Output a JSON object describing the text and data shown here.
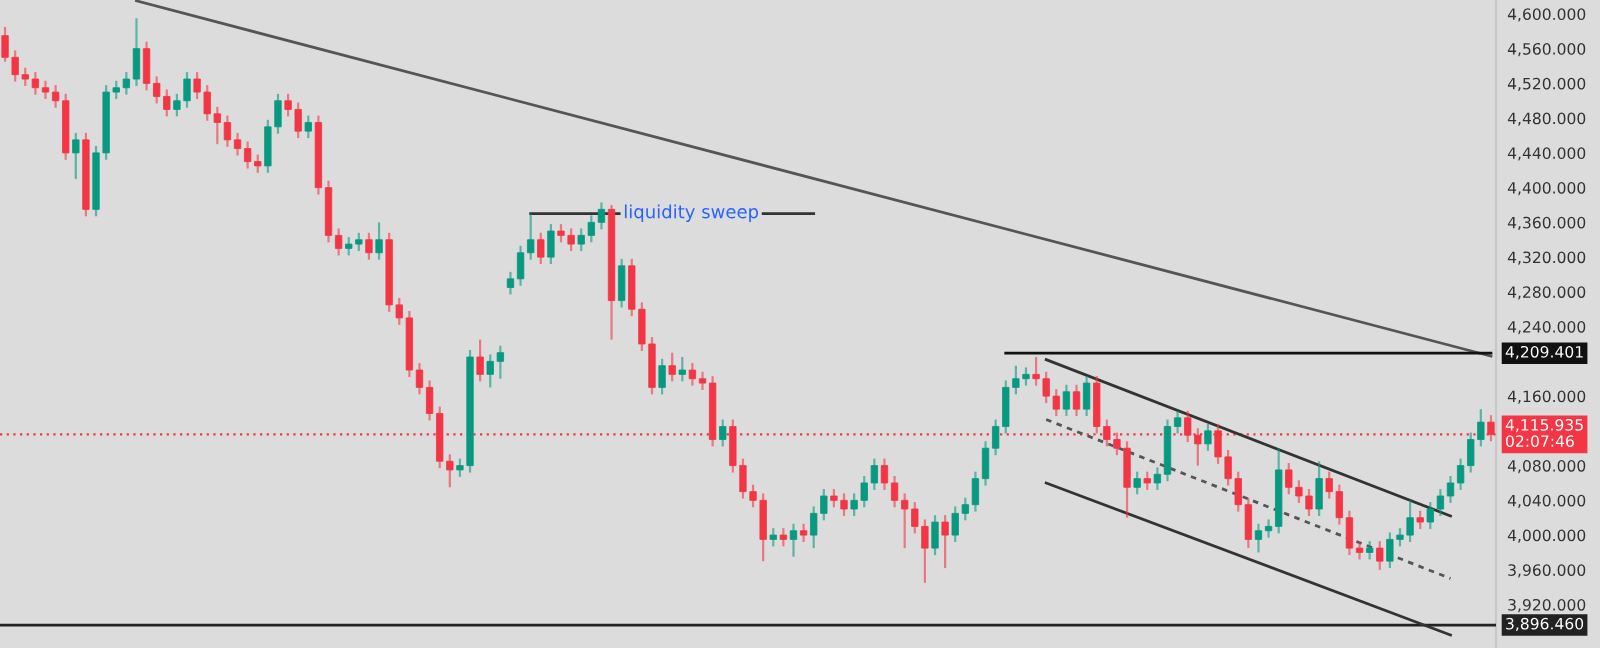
{
  "chart_data": {
    "type": "candlestick",
    "categories": [
      null,
      null,
      null,
      null,
      null,
      null,
      null,
      null,
      null,
      null,
      null,
      null,
      null,
      null,
      null,
      null,
      null,
      null,
      null,
      null,
      null,
      null,
      null,
      null,
      null,
      null,
      null,
      null,
      null,
      null,
      null,
      null,
      null,
      null,
      null,
      null,
      null,
      null,
      null,
      null,
      null,
      null,
      null,
      null,
      null,
      null,
      null,
      null,
      null,
      null,
      null,
      null,
      null,
      null,
      null,
      null,
      null,
      null,
      null,
      null,
      null,
      null,
      null,
      null,
      null,
      null,
      null,
      null,
      null,
      null,
      null,
      null,
      null,
      null,
      null,
      null,
      null,
      null,
      null,
      null,
      null,
      null,
      null,
      null,
      null,
      null,
      null,
      null,
      null,
      null,
      null,
      null,
      null,
      null,
      null,
      null,
      null,
      null,
      null,
      null,
      null,
      null,
      null,
      null,
      null,
      null,
      null,
      null,
      null,
      null,
      null,
      null,
      null,
      null,
      null,
      null,
      null,
      null,
      null,
      null,
      null,
      null,
      null,
      null,
      null,
      null,
      null,
      null,
      null,
      null,
      null,
      null,
      null,
      null,
      null,
      null,
      null,
      null,
      null,
      null,
      null,
      null,
      null,
      null,
      null,
      null,
      null,
      null
    ],
    "ohlc": [
      [
        4575,
        4585,
        4545,
        4550
      ],
      [
        4550,
        4558,
        4522,
        4530
      ],
      [
        4530,
        4538,
        4517,
        4525
      ],
      [
        4525,
        4533,
        4507,
        4515
      ],
      [
        4515,
        4523,
        4502,
        4510
      ],
      [
        4510,
        4518,
        4492,
        4500
      ],
      [
        4500,
        4508,
        4432,
        4440
      ],
      [
        4440,
        4463,
        4410,
        4455
      ],
      [
        4455,
        4463,
        4367,
        4375
      ],
      [
        4375,
        4448,
        4367,
        4440
      ],
      [
        4440,
        4518,
        4432,
        4510
      ],
      [
        4510,
        4523,
        4502,
        4515
      ],
      [
        4515,
        4533,
        4507,
        4525
      ],
      [
        4525,
        4595,
        4517,
        4560
      ],
      [
        4560,
        4568,
        4512,
        4520
      ],
      [
        4520,
        4528,
        4497,
        4505
      ],
      [
        4505,
        4513,
        4482,
        4490
      ],
      [
        4490,
        4508,
        4482,
        4500
      ],
      [
        4500,
        4533,
        4492,
        4525
      ],
      [
        4525,
        4533,
        4502,
        4510
      ],
      [
        4510,
        4518,
        4477,
        4485
      ],
      [
        4485,
        4493,
        4450,
        4475
      ],
      [
        4475,
        4483,
        4447,
        4455
      ],
      [
        4455,
        4463,
        4437,
        4445
      ],
      [
        4445,
        4453,
        4422,
        4430
      ],
      [
        4430,
        4438,
        4417,
        4425
      ],
      [
        4425,
        4478,
        4417,
        4470
      ],
      [
        4470,
        4508,
        4462,
        4500
      ],
      [
        4500,
        4508,
        4482,
        4490
      ],
      [
        4490,
        4498,
        4457,
        4465
      ],
      [
        4465,
        4483,
        4457,
        4475
      ],
      [
        4475,
        4483,
        4392,
        4400
      ],
      [
        4400,
        4408,
        4337,
        4345
      ],
      [
        4345,
        4353,
        4322,
        4330
      ],
      [
        4330,
        4343,
        4322,
        4335
      ],
      [
        4335,
        4348,
        4327,
        4340
      ],
      [
        4340,
        4348,
        4317,
        4325
      ],
      [
        4325,
        4360,
        4317,
        4340
      ],
      [
        4340,
        4348,
        4257,
        4265
      ],
      [
        4265,
        4273,
        4242,
        4250
      ],
      [
        4250,
        4258,
        4182,
        4190
      ],
      [
        4190,
        4198,
        4162,
        4170
      ],
      [
        4170,
        4178,
        4132,
        4140
      ],
      [
        4140,
        4148,
        4077,
        4085
      ],
      [
        4085,
        4093,
        4055,
        4075
      ],
      [
        4075,
        4088,
        4067,
        4080
      ],
      [
        4080,
        4213,
        4072,
        4205
      ],
      [
        4205,
        4225,
        4177,
        4185
      ],
      [
        4185,
        4208,
        4170,
        4200
      ],
      [
        4200,
        4218,
        4180,
        4210
      ],
      [
        4285,
        4303,
        4277,
        4295
      ],
      [
        4295,
        4333,
        4287,
        4325
      ],
      [
        4325,
        4370,
        4317,
        4340
      ],
      [
        4340,
        4348,
        4312,
        4320
      ],
      [
        4320,
        4358,
        4312,
        4350
      ],
      [
        4350,
        4358,
        4337,
        4345
      ],
      [
        4345,
        4353,
        4327,
        4335
      ],
      [
        4335,
        4353,
        4327,
        4345
      ],
      [
        4345,
        4368,
        4337,
        4360
      ],
      [
        4360,
        4383,
        4352,
        4375
      ],
      [
        4375,
        4380,
        4225,
        4270
      ],
      [
        4270,
        4318,
        4262,
        4310
      ],
      [
        4310,
        4318,
        4252,
        4260
      ],
      [
        4260,
        4268,
        4212,
        4220
      ],
      [
        4220,
        4228,
        4162,
        4170
      ],
      [
        4170,
        4203,
        4162,
        4195
      ],
      [
        4195,
        4210,
        4177,
        4185
      ],
      [
        4185,
        4205,
        4177,
        4190
      ],
      [
        4190,
        4198,
        4172,
        4180
      ],
      [
        4180,
        4188,
        4167,
        4175
      ],
      [
        4175,
        4183,
        4102,
        4110
      ],
      [
        4110,
        4133,
        4102,
        4125
      ],
      [
        4125,
        4133,
        4072,
        4080
      ],
      [
        4080,
        4088,
        4042,
        4050
      ],
      [
        4050,
        4058,
        4032,
        4040
      ],
      [
        4040,
        4048,
        3970,
        3995
      ],
      [
        3995,
        4008,
        3987,
        4000
      ],
      [
        4000,
        4008,
        3987,
        3995
      ],
      [
        3995,
        4013,
        3975,
        4005
      ],
      [
        4005,
        4013,
        3992,
        4000
      ],
      [
        4000,
        4033,
        3985,
        4025
      ],
      [
        4025,
        4053,
        4017,
        4045
      ],
      [
        4045,
        4053,
        4032,
        4040
      ],
      [
        4040,
        4048,
        4022,
        4030
      ],
      [
        4030,
        4048,
        4022,
        4040
      ],
      [
        4040,
        4068,
        4032,
        4060
      ],
      [
        4060,
        4088,
        4052,
        4080
      ],
      [
        4080,
        4088,
        4052,
        4060
      ],
      [
        4060,
        4068,
        4032,
        4040
      ],
      [
        4040,
        4048,
        3985,
        4030
      ],
      [
        4030,
        4038,
        4002,
        4010
      ],
      [
        4010,
        4018,
        3945,
        3985
      ],
      [
        3985,
        4023,
        3977,
        4015
      ],
      [
        4015,
        4023,
        3962,
        4000
      ],
      [
        4000,
        4033,
        3992,
        4025
      ],
      [
        4025,
        4043,
        4017,
        4035
      ],
      [
        4035,
        4073,
        4027,
        4065
      ],
      [
        4065,
        4108,
        4057,
        4100
      ],
      [
        4100,
        4133,
        4092,
        4125
      ],
      [
        4125,
        4178,
        4117,
        4170
      ],
      [
        4170,
        4195,
        4162,
        4180
      ],
      [
        4180,
        4193,
        4172,
        4185
      ],
      [
        4185,
        4205,
        4172,
        4180
      ],
      [
        4180,
        4188,
        4152,
        4160
      ],
      [
        4160,
        4168,
        4137,
        4145
      ],
      [
        4145,
        4173,
        4137,
        4165
      ],
      [
        4165,
        4173,
        4137,
        4145
      ],
      [
        4145,
        4183,
        4137,
        4175
      ],
      [
        4175,
        4183,
        4117,
        4125
      ],
      [
        4125,
        4133,
        4102,
        4110
      ],
      [
        4110,
        4118,
        4092,
        4100
      ],
      [
        4100,
        4108,
        4020,
        4055
      ],
      [
        4055,
        4073,
        4047,
        4065
      ],
      [
        4065,
        4073,
        4052,
        4060
      ],
      [
        4060,
        4078,
        4052,
        4070
      ],
      [
        4070,
        4133,
        4062,
        4125
      ],
      [
        4125,
        4143,
        4117,
        4135
      ],
      [
        4135,
        4143,
        4107,
        4115
      ],
      [
        4115,
        4123,
        4080,
        4105
      ],
      [
        4105,
        4128,
        4097,
        4120
      ],
      [
        4120,
        4128,
        4082,
        4090
      ],
      [
        4090,
        4098,
        4057,
        4065
      ],
      [
        4065,
        4073,
        4027,
        4035
      ],
      [
        4035,
        4043,
        3985,
        3995
      ],
      [
        3995,
        4013,
        3980,
        4005
      ],
      [
        4005,
        4018,
        3997,
        4010
      ],
      [
        4010,
        4100,
        4002,
        4075
      ],
      [
        4075,
        4083,
        4047,
        4055
      ],
      [
        4055,
        4063,
        4037,
        4045
      ],
      [
        4045,
        4053,
        4022,
        4030
      ],
      [
        4030,
        4085,
        4022,
        4065
      ],
      [
        4065,
        4073,
        4042,
        4050
      ],
      [
        4050,
        4058,
        4012,
        4020
      ],
      [
        4020,
        4028,
        3977,
        3985
      ],
      [
        3985,
        3993,
        3972,
        3980
      ],
      [
        3980,
        3993,
        3972,
        3985
      ],
      [
        3985,
        3993,
        3960,
        3970
      ],
      [
        3970,
        4003,
        3962,
        3995
      ],
      [
        3995,
        4008,
        3987,
        4000
      ],
      [
        4000,
        4040,
        3992,
        4020
      ],
      [
        4020,
        4028,
        4007,
        4015
      ],
      [
        4015,
        4038,
        4007,
        4030
      ],
      [
        4030,
        4053,
        4022,
        4045
      ],
      [
        4045,
        4068,
        4037,
        4060
      ],
      [
        4060,
        4088,
        4052,
        4080
      ],
      [
        4080,
        4118,
        4072,
        4110
      ],
      [
        4110,
        4145,
        4102,
        4130
      ],
      [
        4130,
        4138,
        4108,
        4115.935
      ]
    ],
    "colors": [
      "#f23645",
      "#f23645",
      "#f23645",
      "#f23645",
      "#f23645",
      "#f23645",
      "#f23645",
      "#089981",
      "#f23645",
      "#089981",
      "#089981",
      "#089981",
      "#089981",
      "#089981",
      "#f23645",
      "#f23645",
      "#f23645",
      "#089981",
      "#089981",
      "#f23645",
      "#f23645",
      "#f23645",
      "#f23645",
      "#f23645",
      "#f23645",
      "#f23645",
      "#089981",
      "#089981",
      "#f23645",
      "#f23645",
      "#089981",
      "#f23645",
      "#f23645",
      "#f23645",
      "#089981",
      "#089981",
      "#f23645",
      "#089981",
      "#f23645",
      "#f23645",
      "#f23645",
      "#f23645",
      "#f23645",
      "#f23645",
      "#f23645",
      "#089981",
      "#089981",
      "#f23645",
      "#089981",
      "#089981",
      "#089981",
      "#089981",
      "#089981",
      "#f23645",
      "#089981",
      "#f23645",
      "#f23645",
      "#089981",
      "#089981",
      "#089981",
      "#f23645",
      "#089981",
      "#f23645",
      "#f23645",
      "#f23645",
      "#089981",
      "#f23645",
      "#089981",
      "#f23645",
      "#f23645",
      "#f23645",
      "#089981",
      "#f23645",
      "#f23645",
      "#f23645",
      "#f23645",
      "#089981",
      "#f23645",
      "#089981",
      "#f23645",
      "#089981",
      "#089981",
      "#f23645",
      "#f23645",
      "#089981",
      "#089981",
      "#089981",
      "#f23645",
      "#f23645",
      "#f23645",
      "#f23645",
      "#f23645",
      "#089981",
      "#f23645",
      "#089981",
      "#089981",
      "#089981",
      "#089981",
      "#089981",
      "#089981",
      "#089981",
      "#089981",
      "#f23645",
      "#f23645",
      "#f23645",
      "#089981",
      "#f23645",
      "#089981",
      "#f23645",
      "#f23645",
      "#f23645",
      "#f23645",
      "#089981",
      "#f23645",
      "#089981",
      "#089981",
      "#089981",
      "#f23645",
      "#f23645",
      "#089981",
      "#f23645",
      "#f23645",
      "#f23645",
      "#f23645",
      "#089981",
      "#089981",
      "#089981",
      "#f23645",
      "#f23645",
      "#f23645",
      "#089981",
      "#f23645",
      "#f23645",
      "#f23645",
      "#f23645",
      "#089981",
      "#f23645",
      "#089981",
      "#089981",
      "#089981",
      "#f23645",
      "#089981",
      "#089981",
      "#089981",
      "#089981",
      "#089981",
      "#089981",
      "#f23645"
    ],
    "series": [
      {
        "type": "line",
        "color": "#555555",
        "values": [
          null,
          null,
          null,
          null,
          null,
          null,
          null,
          null,
          null,
          null,
          null,
          null,
          null,
          4615,
          null,
          null,
          null,
          null,
          null,
          null,
          null,
          null,
          null,
          null,
          null,
          null,
          null,
          null,
          null,
          null,
          null,
          null,
          null,
          null,
          null,
          null,
          null,
          null,
          null,
          null,
          null,
          null,
          null,
          null,
          null,
          null,
          null,
          null,
          null,
          null,
          null,
          null,
          null,
          null,
          null,
          null,
          null,
          null,
          null,
          null,
          null,
          null,
          null,
          null,
          null,
          null,
          null,
          null,
          null,
          null,
          null,
          null,
          null,
          null,
          null,
          null,
          null,
          null,
          null,
          null,
          null,
          null,
          null,
          null,
          null,
          null,
          null,
          null,
          null,
          null,
          null,
          null,
          null,
          null,
          null,
          null,
          null,
          null,
          null,
          null,
          null,
          null,
          null,
          null,
          null,
          null,
          null,
          null,
          null,
          null,
          null,
          null,
          null,
          null,
          null,
          null,
          null,
          null,
          null,
          null,
          null,
          null,
          null,
          null,
          null,
          null,
          null,
          null,
          null,
          null,
          null,
          null,
          null,
          null,
          null,
          null,
          null,
          null,
          null,
          null,
          null,
          null,
          null,
          null,
          null,
          null,
          null,
          4206
        ]
      },
      {
        "type": "line",
        "color": "#333333",
        "values": [
          null,
          null,
          null,
          null,
          null,
          null,
          null,
          null,
          null,
          null,
          null,
          null,
          null,
          null,
          null,
          null,
          null,
          null,
          null,
          null,
          null,
          null,
          null,
          null,
          null,
          null,
          null,
          null,
          null,
          null,
          null,
          null,
          null,
          null,
          null,
          null,
          null,
          null,
          null,
          null,
          null,
          null,
          null,
          null,
          null,
          null,
          null,
          null,
          null,
          null,
          null,
          null,
          4370,
          null,
          null,
          null,
          null,
          null,
          null,
          null,
          null,
          null,
          null,
          null,
          null,
          null,
          null,
          null,
          null,
          null,
          null,
          null,
          null,
          null,
          null,
          null,
          null,
          null,
          null,
          null,
          4370,
          null,
          null,
          null,
          null,
          null,
          null,
          null,
          null,
          null,
          null,
          null,
          null,
          null,
          null,
          null,
          null,
          null,
          null,
          null,
          null,
          null,
          null,
          null,
          null,
          null,
          null,
          null,
          null,
          null,
          null,
          null,
          null,
          null,
          null,
          null,
          null,
          null,
          null,
          null,
          null,
          null,
          null,
          null,
          null,
          null,
          null,
          null,
          null,
          null,
          null,
          null,
          null,
          null,
          null,
          null,
          null,
          null,
          null,
          null,
          null,
          null,
          null,
          null,
          null,
          null,
          null,
          null
        ]
      },
      {
        "type": "line",
        "name": "4,209.401",
        "color": "#111111",
        "values": [
          null,
          null,
          null,
          null,
          null,
          null,
          null,
          null,
          null,
          null,
          null,
          null,
          null,
          null,
          null,
          null,
          null,
          null,
          null,
          null,
          null,
          null,
          null,
          null,
          null,
          null,
          null,
          null,
          null,
          null,
          null,
          null,
          null,
          null,
          null,
          null,
          null,
          null,
          null,
          null,
          null,
          null,
          null,
          null,
          null,
          null,
          null,
          null,
          null,
          null,
          null,
          null,
          null,
          null,
          null,
          null,
          null,
          null,
          null,
          null,
          null,
          null,
          null,
          null,
          null,
          null,
          null,
          null,
          null,
          null,
          null,
          null,
          null,
          null,
          null,
          null,
          null,
          null,
          null,
          null,
          null,
          null,
          null,
          null,
          null,
          null,
          null,
          null,
          null,
          null,
          null,
          null,
          null,
          null,
          null,
          null,
          null,
          null,
          null,
          4209.401,
          null,
          null,
          null,
          null,
          null,
          null,
          null,
          null,
          null,
          null,
          null,
          null,
          null,
          null,
          null,
          null,
          null,
          null,
          null,
          null,
          null,
          null,
          null,
          null,
          null,
          null,
          null,
          null,
          null,
          null,
          null,
          null,
          null,
          null,
          null,
          null,
          null,
          null,
          null,
          null,
          null,
          null,
          null,
          null,
          null,
          null,
          null,
          4209.401
        ]
      },
      {
        "type": "line",
        "color": "#333333",
        "values": [
          null,
          null,
          null,
          null,
          null,
          null,
          null,
          null,
          null,
          null,
          null,
          null,
          null,
          null,
          null,
          null,
          null,
          null,
          null,
          null,
          null,
          null,
          null,
          null,
          null,
          null,
          null,
          null,
          null,
          null,
          null,
          null,
          null,
          null,
          null,
          null,
          null,
          null,
          null,
          null,
          null,
          null,
          null,
          null,
          null,
          null,
          null,
          null,
          null,
          null,
          null,
          null,
          null,
          null,
          null,
          null,
          null,
          null,
          null,
          null,
          null,
          null,
          null,
          null,
          null,
          null,
          null,
          null,
          null,
          null,
          null,
          null,
          null,
          null,
          null,
          null,
          null,
          null,
          null,
          null,
          null,
          null,
          null,
          null,
          null,
          null,
          null,
          null,
          null,
          null,
          null,
          null,
          null,
          null,
          null,
          null,
          null,
          null,
          null,
          null,
          null,
          null,
          null,
          4202,
          null,
          null,
          null,
          null,
          null,
          null,
          null,
          null,
          null,
          null,
          null,
          null,
          null,
          null,
          null,
          null,
          null,
          null,
          null,
          null,
          null,
          null,
          null,
          null,
          null,
          null,
          null,
          null,
          null,
          null,
          null,
          null,
          null,
          null,
          null,
          null,
          null,
          null,
          null,
          4022,
          null,
          null,
          null,
          null
        ]
      },
      {
        "type": "line",
        "color": "#333333",
        "values": [
          null,
          null,
          null,
          null,
          null,
          null,
          null,
          null,
          null,
          null,
          null,
          null,
          null,
          null,
          null,
          null,
          null,
          null,
          null,
          null,
          null,
          null,
          null,
          null,
          null,
          null,
          null,
          null,
          null,
          null,
          null,
          null,
          null,
          null,
          null,
          null,
          null,
          null,
          null,
          null,
          null,
          null,
          null,
          null,
          null,
          null,
          null,
          null,
          null,
          null,
          null,
          null,
          null,
          null,
          null,
          null,
          null,
          null,
          null,
          null,
          null,
          null,
          null,
          null,
          null,
          null,
          null,
          null,
          null,
          null,
          null,
          null,
          null,
          null,
          null,
          null,
          null,
          null,
          null,
          null,
          null,
          null,
          null,
          null,
          null,
          null,
          null,
          null,
          null,
          null,
          null,
          null,
          null,
          null,
          null,
          null,
          null,
          null,
          null,
          null,
          null,
          null,
          null,
          4060,
          null,
          null,
          null,
          null,
          null,
          null,
          null,
          null,
          null,
          null,
          null,
          null,
          null,
          null,
          null,
          null,
          null,
          null,
          null,
          null,
          null,
          null,
          null,
          null,
          null,
          null,
          null,
          null,
          null,
          null,
          null,
          null,
          null,
          null,
          null,
          null,
          null,
          null,
          null,
          3885,
          null,
          null,
          null,
          null
        ]
      },
      {
        "type": "line",
        "color": "#555555",
        "line_style": "dashed",
        "values": [
          null,
          null,
          null,
          null,
          null,
          null,
          null,
          null,
          null,
          null,
          null,
          null,
          null,
          null,
          null,
          null,
          null,
          null,
          null,
          null,
          null,
          null,
          null,
          null,
          null,
          null,
          null,
          null,
          null,
          null,
          null,
          null,
          null,
          null,
          null,
          null,
          null,
          null,
          null,
          null,
          null,
          null,
          null,
          null,
          null,
          null,
          null,
          null,
          null,
          null,
          null,
          null,
          null,
          null,
          null,
          null,
          null,
          null,
          null,
          null,
          null,
          null,
          null,
          null,
          null,
          null,
          null,
          null,
          null,
          null,
          null,
          null,
          null,
          null,
          null,
          null,
          null,
          null,
          null,
          null,
          null,
          null,
          null,
          null,
          null,
          null,
          null,
          null,
          null,
          null,
          null,
          null,
          null,
          null,
          null,
          null,
          null,
          null,
          null,
          null,
          null,
          null,
          null,
          4133,
          null,
          null,
          null,
          null,
          null,
          null,
          null,
          null,
          null,
          null,
          null,
          null,
          null,
          null,
          null,
          null,
          null,
          null,
          null,
          null,
          null,
          null,
          null,
          null,
          null,
          null,
          null,
          null,
          null,
          null,
          null,
          null,
          null,
          null,
          null,
          null,
          null,
          null,
          null,
          3950,
          null,
          null,
          null,
          null
        ]
      }
    ],
    "ref_lines": [
      {
        "axis": "y",
        "value": 4115.935,
        "label": "4,115.935\n02:07:46",
        "color": "#f23645",
        "line_style": "dotted"
      },
      {
        "axis": "y",
        "value": 3896.46,
        "label": "3,896.460",
        "color": "#222222",
        "line_style": "solid"
      }
    ],
    "annotations": [
      "liquidity sweep"
    ],
    "ylim": [
      3870,
      4616
    ],
    "yticks": [
      {
        "value": 3920,
        "label": "3,920.000"
      },
      {
        "value": 3960,
        "label": "3,960.000"
      },
      {
        "value": 4000,
        "label": "4,000.000"
      },
      {
        "value": 4040,
        "label": "4,040.000"
      },
      {
        "value": 4080,
        "label": "4,080.000"
      },
      {
        "value": 4160,
        "label": "4,160.000"
      },
      {
        "value": 4240,
        "label": "4,240.000"
      },
      {
        "value": 4280,
        "label": "4,280.000"
      },
      {
        "value": 4320,
        "label": "4,320.000"
      },
      {
        "value": 4360,
        "label": "4,360.000"
      },
      {
        "value": 4400,
        "label": "4,400.000"
      },
      {
        "value": 4440,
        "label": "4,440.000"
      },
      {
        "value": 4480,
        "label": "4,480.000"
      },
      {
        "value": 4520,
        "label": "4,520.000"
      },
      {
        "value": 4560,
        "label": "4,560.000"
      },
      {
        "value": 4600,
        "label": "4,600.000"
      }
    ],
    "tick_labels": "y",
    "grid": false,
    "legend": false
  }
}
